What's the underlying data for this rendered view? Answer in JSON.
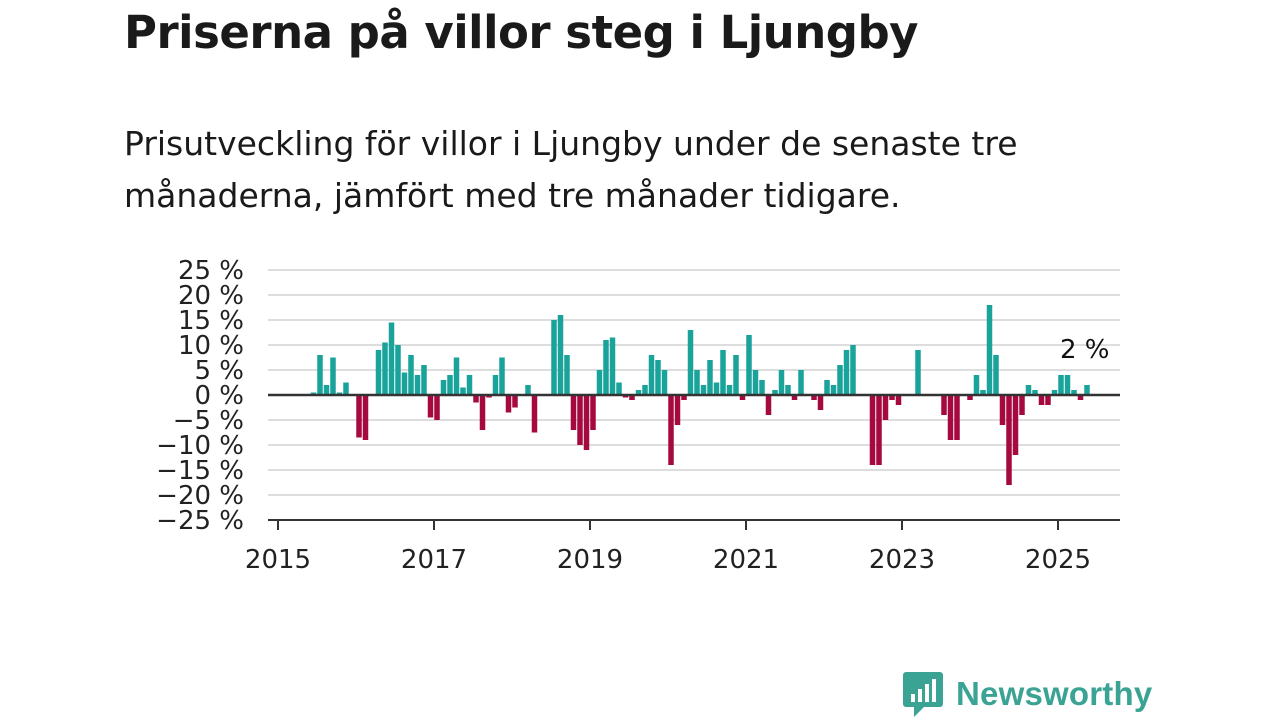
{
  "header": {
    "title": "Priserna på villor steg i Ljungby",
    "subtitle": "Prisutveckling för villor i Ljungby under de senaste tre månaderna, jämfört med tre månader tidigare."
  },
  "brand": {
    "name": "Newsworthy",
    "icon": "newsworthy-logo-icon",
    "color": "#3aa394"
  },
  "colors": {
    "positive": "#1aa39a",
    "negative": "#a5093f",
    "axis": "#333333",
    "grid": "#dddddd"
  },
  "chart_data": {
    "type": "bar",
    "xlabel": "",
    "ylabel": "",
    "ylim": [
      -25,
      25
    ],
    "yticks": [
      25,
      20,
      15,
      10,
      5,
      0,
      -5,
      -10,
      -15,
      -20,
      -25
    ],
    "ytick_labels": [
      "25 %",
      "20 %",
      "15 %",
      "10 %",
      "5 %",
      "0 %",
      "−5 %",
      "−10 %",
      "−15 %",
      "−20 %",
      "−25 %"
    ],
    "xticks": [
      "2015",
      "2017",
      "2019",
      "2021",
      "2023",
      "2025"
    ],
    "grid": true,
    "annotation": {
      "label": "2 %",
      "x": "2025-05",
      "y": 2
    },
    "x": [
      "2015-06",
      "2015-07",
      "2015-08",
      "2015-09",
      "2015-10",
      "2015-11",
      "2015-12",
      "2016-01",
      "2016-02",
      "2016-03",
      "2016-04",
      "2016-05",
      "2016-06",
      "2016-07",
      "2016-08",
      "2016-09",
      "2016-10",
      "2016-11",
      "2016-12",
      "2017-01",
      "2017-02",
      "2017-03",
      "2017-04",
      "2017-05",
      "2017-06",
      "2017-07",
      "2017-08",
      "2017-09",
      "2017-10",
      "2017-11",
      "2017-12",
      "2018-01",
      "2018-02",
      "2018-03",
      "2018-04",
      "2018-05",
      "2018-06",
      "2018-07",
      "2018-08",
      "2018-09",
      "2018-10",
      "2018-11",
      "2018-12",
      "2019-01",
      "2019-02",
      "2019-03",
      "2019-04",
      "2019-05",
      "2019-06",
      "2019-07",
      "2019-08",
      "2019-09",
      "2019-10",
      "2019-11",
      "2019-12",
      "2020-01",
      "2020-02",
      "2020-03",
      "2020-04",
      "2020-05",
      "2020-06",
      "2020-07",
      "2020-08",
      "2020-09",
      "2020-10",
      "2020-11",
      "2020-12",
      "2021-01",
      "2021-02",
      "2021-03",
      "2021-04",
      "2021-05",
      "2021-06",
      "2021-07",
      "2021-08",
      "2021-09",
      "2021-10",
      "2021-11",
      "2021-12",
      "2022-01",
      "2022-02",
      "2022-03",
      "2022-04",
      "2022-05",
      "2022-06",
      "2022-07",
      "2022-08",
      "2022-09",
      "2022-10",
      "2022-11",
      "2022-12",
      "2023-01",
      "2023-02",
      "2023-03",
      "2023-04",
      "2023-05",
      "2023-06",
      "2023-07",
      "2023-08",
      "2023-09",
      "2023-10",
      "2023-11",
      "2023-12",
      "2024-01",
      "2024-02",
      "2024-03",
      "2024-04",
      "2024-05",
      "2024-06",
      "2024-07",
      "2024-08",
      "2024-09",
      "2024-10",
      "2024-11",
      "2024-12",
      "2025-01",
      "2025-02",
      "2025-03",
      "2025-04",
      "2025-05"
    ],
    "values": [
      0.5,
      8,
      2,
      7.5,
      0.5,
      2.5,
      0,
      -8.5,
      -9,
      0,
      9,
      10.5,
      14.5,
      10,
      4.5,
      8,
      4,
      6,
      -4.5,
      -5,
      3,
      4,
      7.5,
      1.5,
      4,
      -1.5,
      -7,
      -0.5,
      4,
      7.5,
      -3.5,
      -2.5,
      0,
      2,
      -7.5,
      0,
      0,
      15,
      16,
      8,
      -7,
      -10,
      -11,
      -7,
      5,
      11,
      11.5,
      2.5,
      -0.5,
      -1,
      1,
      2,
      8,
      7,
      5,
      -14,
      -6,
      -1,
      13,
      5,
      2,
      7,
      2.5,
      9,
      2,
      8,
      -1,
      12,
      5,
      3,
      -4,
      1,
      5,
      2,
      -1,
      5,
      0,
      -1,
      -3,
      3,
      2,
      6,
      9,
      10,
      0,
      0,
      -14,
      -14,
      -5,
      -1,
      -2,
      0,
      0,
      9,
      0,
      0,
      0,
      -4,
      -9,
      -9,
      0,
      -1,
      4,
      1,
      18,
      8,
      -6,
      -18,
      -12,
      -4,
      2,
      1,
      -2,
      -2,
      1,
      4,
      4,
      1,
      -1,
      2
    ]
  }
}
